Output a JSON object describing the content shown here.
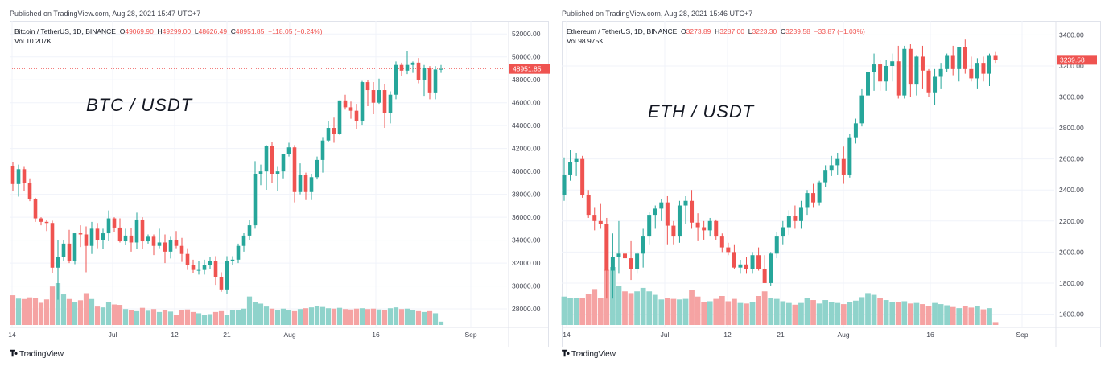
{
  "theme": {
    "up_color": "#26a69a",
    "down_color": "#ef5350",
    "up_vol_color": "#8fd3cb",
    "down_vol_color": "#f5a3a3",
    "grid_color": "#f0f3fa",
    "price_line_color": "#ef5350"
  },
  "panels": [
    {
      "published": "Published on TradingView.com, Aug 28, 2021 15:47 UTC+7",
      "legend": {
        "symbol": "Bitcoin / TetherUS, 1D, BINANCE",
        "o_label": "O",
        "o": "49069.90",
        "h_label": "H",
        "h": "49299.00",
        "l_label": "L",
        "l": "48626.49",
        "c_label": "C",
        "c": "48951.85",
        "change": "−118.05 (−0.24%)"
      },
      "vol": {
        "label": "Vol",
        "value": "10.207K"
      },
      "big_label": "BTC / USDT",
      "brand": "TradingView",
      "brand_icon": "tradingview-logo-icon",
      "last_price_label": "48951.85"
    },
    {
      "published": "Published on TradingView.com, Aug 28, 2021 15:46 UTC+7",
      "legend": {
        "symbol": "Ethereum / TetherUS, 1D, BINANCE",
        "o_label": "O",
        "o": "3273.89",
        "h_label": "H",
        "h": "3287.00",
        "l_label": "L",
        "l": "3223.30",
        "c_label": "C",
        "c": "3239.58",
        "change": "−33.87 (−1.03%)"
      },
      "vol": {
        "label": "Vol",
        "value": "98.975K"
      },
      "big_label": "ETH / USDT",
      "brand": "TradingView",
      "brand_icon": "tradingview-logo-icon",
      "last_price_label": "3239.58"
    }
  ],
  "chart_data": [
    {
      "type": "candlestick",
      "title": "Bitcoin / TetherUS, 1D, BINANCE",
      "x_ticks": [
        "14",
        "Jul",
        "12",
        "21",
        "Aug",
        "16",
        "Sep"
      ],
      "y_ticks": [
        "28000.00",
        "30000.00",
        "32000.00",
        "34000.00",
        "36000.00",
        "38000.00",
        "40000.00",
        "42000.00",
        "44000.00",
        "46000.00",
        "48000.00",
        "50000.00",
        "52000.00"
      ],
      "ylim": [
        26600,
        53000
      ],
      "last_price": 48951.85,
      "candles": [
        [
          40500,
          40800,
          38300,
          38900,
          0.71
        ],
        [
          38900,
          40600,
          37800,
          40200,
          0.63
        ],
        [
          40200,
          40400,
          38300,
          39000,
          0.62
        ],
        [
          39000,
          39400,
          37400,
          37600,
          0.66
        ],
        [
          37600,
          37700,
          35600,
          35900,
          0.64
        ],
        [
          35900,
          36000,
          35300,
          35600,
          0.53
        ],
        [
          35600,
          35800,
          34800,
          35500,
          0.61
        ],
        [
          35500,
          35700,
          31100,
          31600,
          0.92
        ],
        [
          31600,
          34000,
          28800,
          32500,
          1.0
        ],
        [
          32500,
          34000,
          32200,
          33700,
          0.73
        ],
        [
          33700,
          34900,
          32000,
          32200,
          0.62
        ],
        [
          32200,
          34600,
          31900,
          34600,
          0.55
        ],
        [
          34600,
          35300,
          33400,
          34500,
          0.59
        ],
        [
          34500,
          35200,
          31200,
          33500,
          0.76
        ],
        [
          33500,
          35600,
          32800,
          35000,
          0.62
        ],
        [
          35000,
          35500,
          33300,
          34000,
          0.44
        ],
        [
          34000,
          35000,
          33200,
          34600,
          0.42
        ],
        [
          34600,
          36600,
          33900,
          35900,
          0.54
        ],
        [
          35900,
          36000,
          34700,
          35100,
          0.49
        ],
        [
          35100,
          35900,
          33800,
          33900,
          0.48
        ],
        [
          33900,
          35000,
          33600,
          34400,
          0.38
        ],
        [
          34400,
          35100,
          33000,
          33800,
          0.36
        ],
        [
          33800,
          36400,
          33200,
          35800,
          0.33
        ],
        [
          35800,
          36000,
          33200,
          33900,
          0.41
        ],
        [
          33900,
          34500,
          33700,
          34300,
          0.34
        ],
        [
          34300,
          34500,
          32700,
          33500,
          0.38
        ],
        [
          33500,
          35000,
          33300,
          33800,
          0.31
        ],
        [
          33800,
          34500,
          32000,
          33000,
          0.36
        ],
        [
          33000,
          34300,
          32400,
          34000,
          0.32
        ],
        [
          34000,
          34800,
          33300,
          33500,
          0.24
        ],
        [
          33500,
          34200,
          32100,
          32800,
          0.35
        ],
        [
          32800,
          33300,
          31400,
          31800,
          0.37
        ],
        [
          31800,
          32300,
          31100,
          31400,
          0.31
        ],
        [
          31400,
          32200,
          31000,
          31400,
          0.28
        ],
        [
          31400,
          32300,
          31000,
          31800,
          0.25
        ],
        [
          31800,
          32500,
          31500,
          32200,
          0.26
        ],
        [
          32200,
          32600,
          30100,
          30800,
          0.31
        ],
        [
          30800,
          31200,
          29500,
          29700,
          0.33
        ],
        [
          29700,
          32600,
          29300,
          32200,
          0.24
        ],
        [
          32200,
          32600,
          31800,
          32300,
          0.35
        ],
        [
          32300,
          33700,
          32000,
          33500,
          0.36
        ],
        [
          33500,
          34600,
          33000,
          34400,
          0.39
        ],
        [
          34400,
          35800,
          34000,
          35300,
          0.68
        ],
        [
          35300,
          40900,
          35000,
          39800,
          0.55
        ],
        [
          39800,
          40600,
          38800,
          40000,
          0.51
        ],
        [
          40000,
          42300,
          38400,
          42200,
          0.44
        ],
        [
          42200,
          42600,
          39000,
          39800,
          0.39
        ],
        [
          39800,
          40400,
          38300,
          40000,
          0.35
        ],
        [
          40000,
          41500,
          39400,
          41500,
          0.39
        ],
        [
          41500,
          42500,
          41300,
          42100,
          0.36
        ],
        [
          42100,
          42300,
          37300,
          38200,
          0.33
        ],
        [
          38200,
          40700,
          38000,
          39700,
          0.38
        ],
        [
          39700,
          39900,
          37500,
          38200,
          0.4
        ],
        [
          38200,
          39800,
          37500,
          39500,
          0.42
        ],
        [
          39500,
          41300,
          39300,
          41000,
          0.45
        ],
        [
          41000,
          43000,
          39900,
          42700,
          0.43
        ],
        [
          42700,
          44400,
          42600,
          43800,
          0.4
        ],
        [
          43800,
          44700,
          42500,
          43300,
          0.39
        ],
        [
          43300,
          46200,
          43200,
          46200,
          0.41
        ],
        [
          46200,
          46700,
          45400,
          45600,
          0.38
        ],
        [
          45600,
          46100,
          44600,
          45300,
          0.37
        ],
        [
          45300,
          45900,
          43700,
          44400,
          0.39
        ],
        [
          44400,
          47900,
          44000,
          47800,
          0.4
        ],
        [
          47800,
          48000,
          45700,
          47100,
          0.38
        ],
        [
          47100,
          47800,
          45000,
          46000,
          0.39
        ],
        [
          46000,
          48100,
          45900,
          47100,
          0.37
        ],
        [
          47100,
          47600,
          43800,
          45100,
          0.36
        ],
        [
          45100,
          47000,
          44200,
          46700,
          0.4
        ],
        [
          46700,
          49600,
          46300,
          49300,
          0.42
        ],
        [
          49300,
          49500,
          48300,
          48800,
          0.38
        ],
        [
          48800,
          50500,
          48500,
          49300,
          0.39
        ],
        [
          49300,
          49600,
          48600,
          49500,
          0.35
        ],
        [
          49500,
          49900,
          47700,
          48000,
          0.33
        ],
        [
          48000,
          49300,
          46600,
          49000,
          0.31
        ],
        [
          49000,
          49200,
          46300,
          46900,
          0.33
        ],
        [
          46900,
          49200,
          46300,
          48900,
          0.28
        ],
        [
          48900,
          49300,
          48600,
          48950,
          0.08
        ]
      ]
    },
    {
      "type": "candlestick",
      "title": "Ethereum / TetherUS, 1D, BINANCE",
      "x_ticks": [
        "14",
        "Jul",
        "12",
        "21",
        "Aug",
        "16",
        "Sep"
      ],
      "y_ticks": [
        "1600.00",
        "1800.00",
        "2000.00",
        "2200.00",
        "2400.00",
        "2600.00",
        "2800.00",
        "3000.00",
        "3200.00",
        "3400.00"
      ],
      "ylim": [
        1530,
        3480
      ],
      "last_price": 3239.58,
      "candles": [
        [
          2370,
          2610,
          2330,
          2500,
          0.49
        ],
        [
          2500,
          2660,
          2460,
          2580,
          0.46
        ],
        [
          2580,
          2640,
          2490,
          2600,
          0.47
        ],
        [
          2600,
          2620,
          2350,
          2370,
          0.47
        ],
        [
          2370,
          2400,
          2220,
          2240,
          0.53
        ],
        [
          2240,
          2290,
          2140,
          2200,
          0.62
        ],
        [
          2200,
          2310,
          2150,
          2180,
          0.46
        ],
        [
          2180,
          2220,
          1700,
          1880,
          0.95
        ],
        [
          1880,
          2120,
          1700,
          1970,
          1.0
        ],
        [
          1970,
          2200,
          1860,
          1990,
          0.68
        ],
        [
          1990,
          2120,
          1850,
          1960,
          0.58
        ],
        [
          1960,
          2070,
          1820,
          1890,
          0.55
        ],
        [
          1890,
          2000,
          1860,
          1990,
          0.58
        ],
        [
          1990,
          2150,
          1900,
          2100,
          0.64
        ],
        [
          2100,
          2260,
          2050,
          2240,
          0.58
        ],
        [
          2240,
          2300,
          2150,
          2280,
          0.52
        ],
        [
          2280,
          2340,
          2200,
          2320,
          0.44
        ],
        [
          2320,
          2360,
          2050,
          2170,
          0.46
        ],
        [
          2170,
          2200,
          2050,
          2100,
          0.45
        ],
        [
          2100,
          2330,
          2060,
          2300,
          0.44
        ],
        [
          2300,
          2360,
          2180,
          2330,
          0.45
        ],
        [
          2330,
          2400,
          2150,
          2190,
          0.61
        ],
        [
          2190,
          2250,
          2070,
          2160,
          0.49
        ],
        [
          2160,
          2200,
          2080,
          2140,
          0.4
        ],
        [
          2140,
          2220,
          2100,
          2200,
          0.41
        ],
        [
          2200,
          2210,
          2080,
          2100,
          0.45
        ],
        [
          2100,
          2120,
          2000,
          2030,
          0.5
        ],
        [
          2030,
          2060,
          1980,
          2000,
          0.41
        ],
        [
          2000,
          2050,
          1890,
          1900,
          0.45
        ],
        [
          1900,
          1950,
          1860,
          1920,
          0.38
        ],
        [
          1920,
          1970,
          1860,
          1890,
          0.37
        ],
        [
          1890,
          2000,
          1860,
          1980,
          0.39
        ],
        [
          1980,
          2030,
          1880,
          1890,
          0.5
        ],
        [
          1890,
          1980,
          1800,
          1800,
          0.58
        ],
        [
          1800,
          2000,
          1780,
          1990,
          0.47
        ],
        [
          1990,
          2130,
          1960,
          2100,
          0.45
        ],
        [
          2100,
          2200,
          2050,
          2160,
          0.41
        ],
        [
          2160,
          2270,
          2110,
          2230,
          0.38
        ],
        [
          2230,
          2300,
          2150,
          2200,
          0.35
        ],
        [
          2200,
          2330,
          2150,
          2290,
          0.38
        ],
        [
          2290,
          2400,
          2240,
          2380,
          0.47
        ],
        [
          2380,
          2440,
          2290,
          2320,
          0.43
        ],
        [
          2320,
          2460,
          2300,
          2450,
          0.37
        ],
        [
          2450,
          2560,
          2420,
          2530,
          0.43
        ],
        [
          2530,
          2620,
          2490,
          2560,
          0.4
        ],
        [
          2560,
          2640,
          2500,
          2600,
          0.38
        ],
        [
          2600,
          2680,
          2440,
          2500,
          0.36
        ],
        [
          2500,
          2760,
          2480,
          2740,
          0.39
        ],
        [
          2740,
          2860,
          2700,
          2830,
          0.42
        ],
        [
          2830,
          3050,
          2810,
          3010,
          0.48
        ],
        [
          3010,
          3240,
          2940,
          3160,
          0.55
        ],
        [
          3160,
          3280,
          3040,
          3210,
          0.52
        ],
        [
          3210,
          3240,
          3040,
          3100,
          0.47
        ],
        [
          3100,
          3240,
          3040,
          3200,
          0.43
        ],
        [
          3200,
          3280,
          3100,
          3230,
          0.4
        ],
        [
          3230,
          3330,
          2990,
          3010,
          0.39
        ],
        [
          3010,
          3330,
          2990,
          3310,
          0.41
        ],
        [
          3310,
          3340,
          3000,
          3080,
          0.37
        ],
        [
          3080,
          3270,
          3010,
          3260,
          0.38
        ],
        [
          3260,
          3330,
          3050,
          3170,
          0.36
        ],
        [
          3170,
          3180,
          3000,
          3030,
          0.33
        ],
        [
          3030,
          3180,
          2950,
          3130,
          0.38
        ],
        [
          3130,
          3220,
          3050,
          3180,
          0.36
        ],
        [
          3180,
          3280,
          3160,
          3270,
          0.34
        ],
        [
          3270,
          3330,
          3140,
          3180,
          0.31
        ],
        [
          3180,
          3320,
          3100,
          3320,
          0.29
        ],
        [
          3320,
          3370,
          3150,
          3180,
          0.32
        ],
        [
          3180,
          3260,
          3100,
          3120,
          0.3
        ],
        [
          3120,
          3250,
          3050,
          3220,
          0.33
        ],
        [
          3220,
          3260,
          3100,
          3150,
          0.27
        ],
        [
          3150,
          3280,
          3070,
          3270,
          0.29
        ],
        [
          3270,
          3290,
          3220,
          3240,
          0.05
        ]
      ]
    }
  ]
}
